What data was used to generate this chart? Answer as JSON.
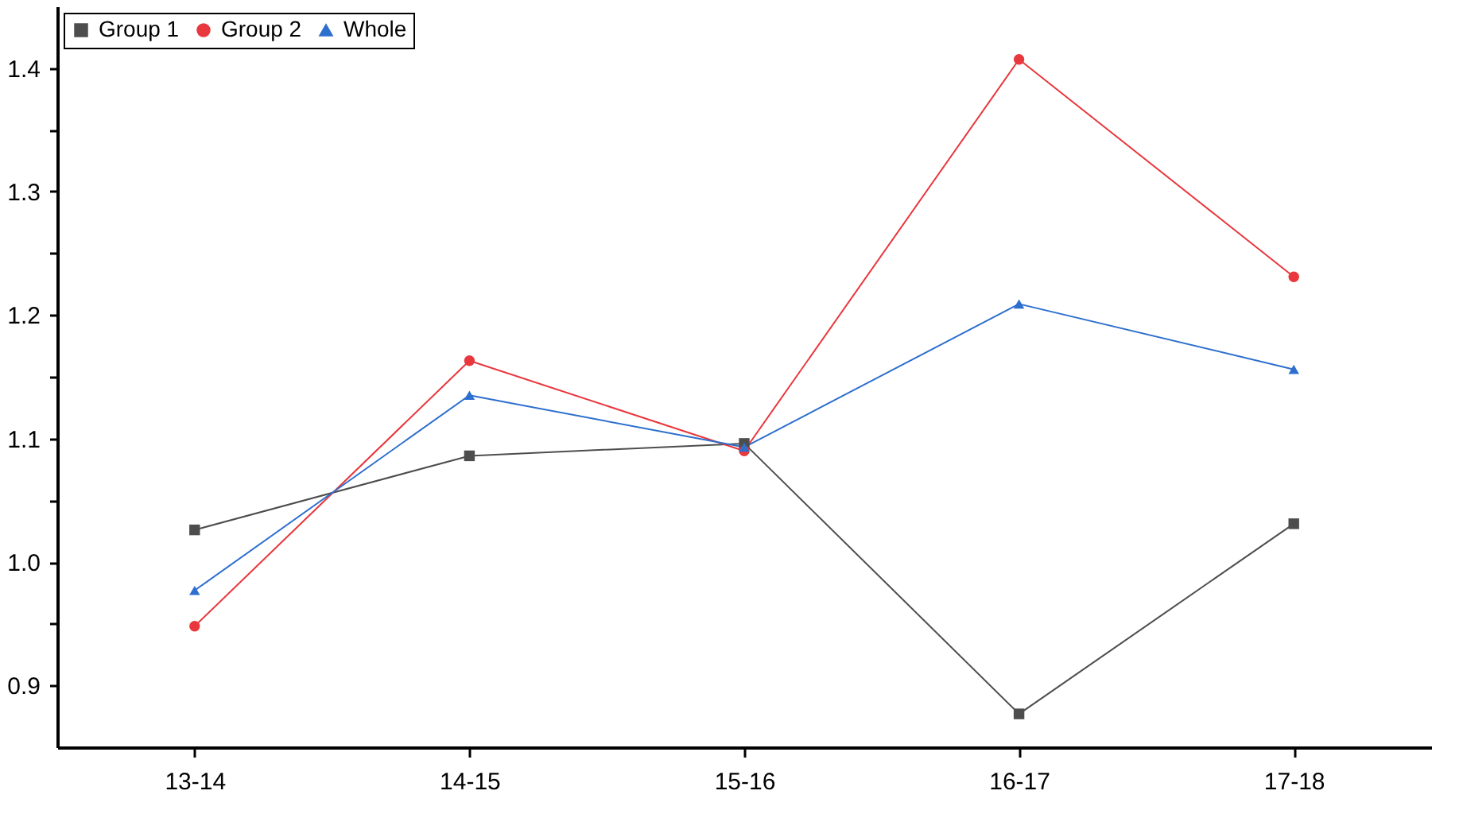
{
  "chart_data": {
    "type": "line",
    "categories": [
      "13-14",
      "14-15",
      "15-16",
      "16-17",
      "17-18"
    ],
    "series": [
      {
        "name": "Group 1",
        "color": "#4d4d4d",
        "marker": "square",
        "values": [
          1.026,
          1.086,
          1.096,
          0.877,
          1.031
        ]
      },
      {
        "name": "Group 2",
        "color": "#e8373d",
        "marker": "circle",
        "values": [
          0.948,
          1.163,
          1.09,
          1.407,
          1.231
        ]
      },
      {
        "name": "Whole",
        "color": "#2d6fce",
        "marker": "triangle",
        "values": [
          0.977,
          1.135,
          1.093,
          1.209,
          1.156
        ]
      }
    ],
    "ylim": [
      0.85,
      1.45
    ],
    "yticks": [
      {
        "value": 0.9,
        "label": "0.9"
      },
      {
        "value": 0.95,
        "label": null
      },
      {
        "value": 1.0,
        "label": "1.0"
      },
      {
        "value": 1.05,
        "label": null
      },
      {
        "value": 1.1,
        "label": "1.1"
      },
      {
        "value": 1.15,
        "label": null
      },
      {
        "value": 1.2,
        "label": "1.2"
      },
      {
        "value": 1.25,
        "label": null
      },
      {
        "value": 1.3,
        "label": "1.3"
      },
      {
        "value": 1.35,
        "label": null
      },
      {
        "value": 1.4,
        "label": "1.4"
      }
    ],
    "grid": false,
    "legend": "top left",
    "line_style": "solid"
  }
}
